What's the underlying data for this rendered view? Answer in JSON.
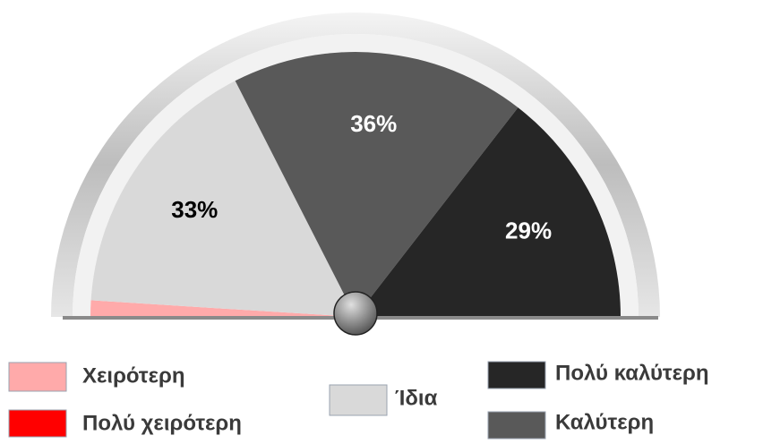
{
  "chart_data": {
    "type": "gauge",
    "categories": [
      "Πολύ χειρότερη",
      "Χειρότερη",
      "Ίδια",
      "Καλύτερη",
      "Πολύ καλύτερη"
    ],
    "values": [
      0,
      2,
      33,
      36,
      29
    ],
    "value_labels": [
      null,
      null,
      "33%",
      "36%",
      "29%"
    ],
    "colors": [
      "#ff0000",
      "#ffaaaa",
      "#d9d9d9",
      "#595959",
      "#262626"
    ],
    "label_colors": [
      "#000000",
      "#000000",
      "#000000",
      "#ffffff",
      "#ffffff"
    ],
    "legend": true
  }
}
